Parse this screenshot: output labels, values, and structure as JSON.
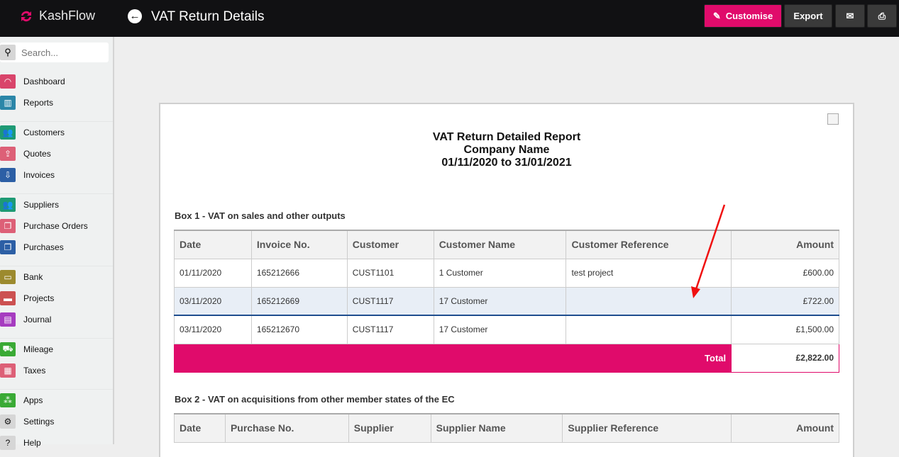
{
  "app": {
    "name": "KashFlow",
    "page_title": "VAT Return Details",
    "brand_color": "#e00b6b"
  },
  "toolbar": {
    "customise": "Customise",
    "export": "Export",
    "email_icon": "envelope-icon",
    "print_icon": "printer-icon"
  },
  "search": {
    "placeholder": "Search..."
  },
  "sidebar": {
    "groups": [
      [
        {
          "label": "Dashboard",
          "color": "#d9456b"
        },
        {
          "label": "Reports",
          "color": "#2b86a8"
        }
      ],
      [
        {
          "label": "Customers",
          "color": "#1e9a74"
        },
        {
          "label": "Quotes",
          "color": "#dd6077"
        },
        {
          "label": "Invoices",
          "color": "#2c5fa5"
        }
      ],
      [
        {
          "label": "Suppliers",
          "color": "#1e9a74"
        },
        {
          "label": "Purchase Orders",
          "color": "#dd6077"
        },
        {
          "label": "Purchases",
          "color": "#2c5fa5"
        }
      ],
      [
        {
          "label": "Bank",
          "color": "#9c8a2e"
        },
        {
          "label": "Projects",
          "color": "#cc5151"
        },
        {
          "label": "Journal",
          "color": "#a63cc0"
        }
      ],
      [
        {
          "label": "Mileage",
          "color": "#3aaa35"
        },
        {
          "label": "Taxes",
          "color": "#dd6077"
        }
      ],
      [
        {
          "label": "Apps",
          "color": "#3aaa35"
        },
        {
          "label": "Settings",
          "color": "#d6d6d6"
        },
        {
          "label": "Help",
          "color": "#d6d6d6"
        }
      ]
    ]
  },
  "report": {
    "title": "VAT Return Detailed Report",
    "company": "Company Name",
    "period": "01/11/2020 to 31/01/2021",
    "box1": {
      "heading": "Box 1 - VAT on sales and other outputs",
      "columns": [
        "Date",
        "Invoice No.",
        "Customer",
        "Customer Name",
        "Customer Reference",
        "Amount"
      ],
      "rows": [
        [
          "01/11/2020",
          "165212666",
          "CUST1101",
          "1 Customer",
          "test project",
          "£600.00"
        ],
        [
          "03/11/2020",
          "165212669",
          "CUST1117",
          "17 Customer",
          "",
          "£722.00"
        ],
        [
          "03/11/2020",
          "165212670",
          "CUST1117",
          "17 Customer",
          "",
          "£1,500.00"
        ]
      ],
      "total_label": "Total",
      "total_value": "£2,822.00"
    },
    "box2": {
      "heading": "Box 2 - VAT on acquisitions from other member states of the EC",
      "columns": [
        "Date",
        "Purchase No.",
        "Supplier",
        "Supplier Name",
        "Supplier Reference",
        "Amount"
      ]
    }
  }
}
